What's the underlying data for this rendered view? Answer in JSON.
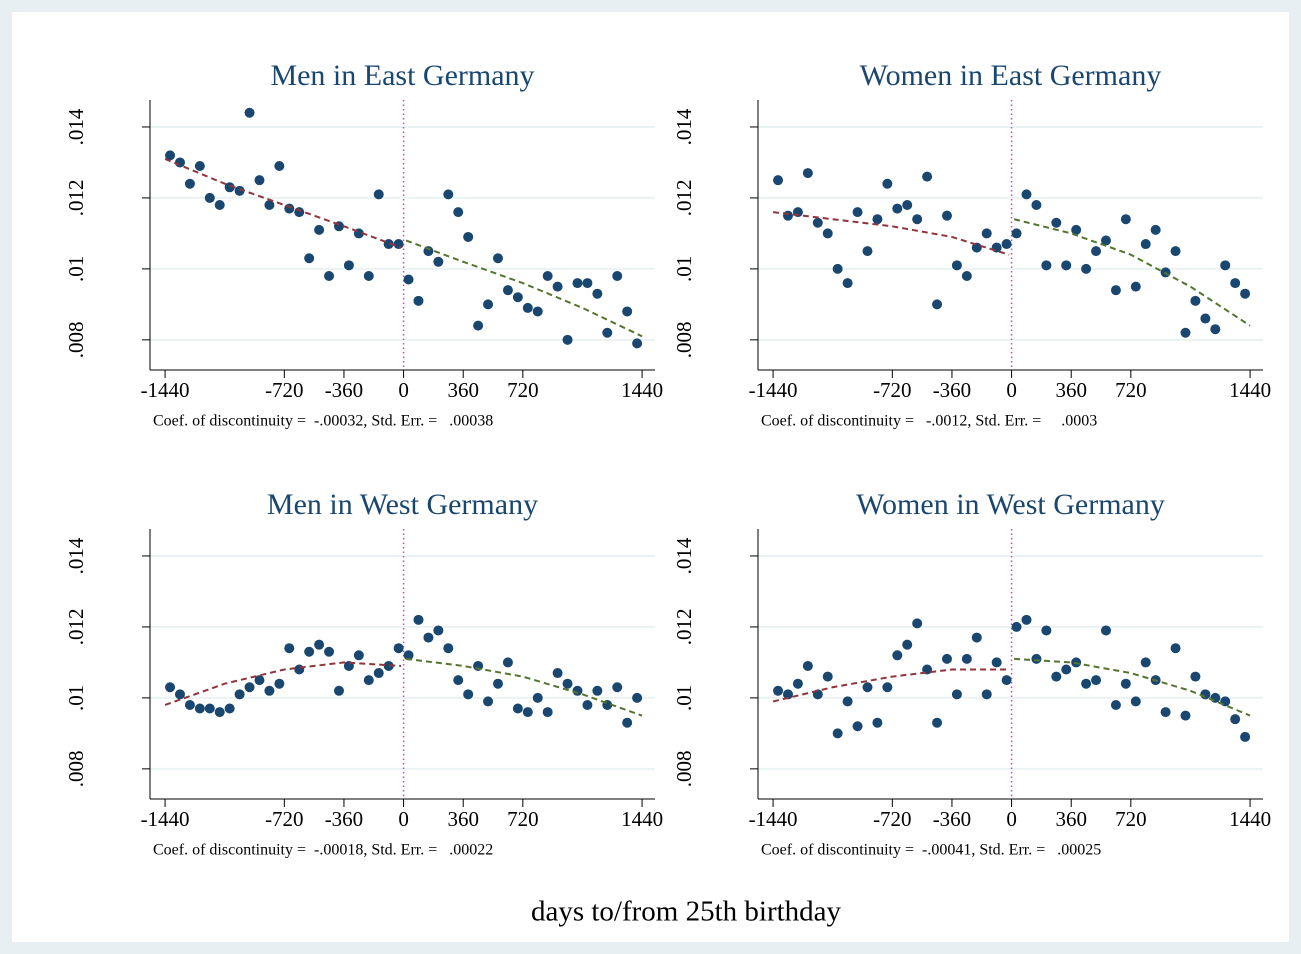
{
  "xlabel": "days to/from 25th birthday",
  "chart_data": [
    {
      "type": "scatter",
      "title": "Men in East Germany",
      "note": "Coef. of discontinuity =  -.00032, Std. Err. =   .00038",
      "xlim": [
        -1531,
        1518
      ],
      "xticks": [
        -1440,
        -720,
        -360,
        0,
        360,
        720,
        1440
      ],
      "ylim": [
        0.00715,
        0.01476
      ],
      "yticks": [
        {
          "value": 0.008,
          "label": ".008"
        },
        {
          "value": 0.01,
          "label": ".01"
        },
        {
          "value": 0.012,
          "label": ".012"
        },
        {
          "value": 0.014,
          "label": ".014"
        }
      ],
      "grid": true,
      "cutoff": 0,
      "cutoff_color": "#cc44cc",
      "series": [
        {
          "type": "scatter",
          "color": "#1a476f",
          "x": [
            -1410,
            -1350,
            -1290,
            -1230,
            -1170,
            -1110,
            -1050,
            -990,
            -930,
            -870,
            -810,
            -750,
            -690,
            -630,
            -570,
            -510,
            -450,
            -390,
            -330,
            -270,
            -210,
            -150,
            -90,
            -30,
            30,
            90,
            150,
            210,
            270,
            330,
            390,
            450,
            510,
            570,
            630,
            690,
            750,
            810,
            870,
            930,
            990,
            1050,
            1110,
            1170,
            1230,
            1290,
            1350,
            1410
          ],
          "values": [
            0.0132,
            0.013,
            0.0124,
            0.0129,
            0.012,
            0.0118,
            0.0123,
            0.0122,
            0.0144,
            0.0125,
            0.0118,
            0.0129,
            0.0117,
            0.0116,
            0.0103,
            0.0111,
            0.0098,
            0.0112,
            0.0101,
            0.011,
            0.0098,
            0.0121,
            0.0107,
            0.0107,
            0.0097,
            0.0091,
            0.0105,
            0.0102,
            0.0121,
            0.0116,
            0.0109,
            0.0084,
            0.009,
            0.0103,
            0.0094,
            0.0092,
            0.0089,
            0.0088,
            0.0098,
            0.0095,
            0.008,
            0.0096,
            0.0096,
            0.0093,
            0.0082,
            0.0098,
            0.0088,
            0.0079
          ]
        },
        {
          "type": "line",
          "color": "#90353b",
          "dash": true,
          "x": [
            -1440,
            -1080,
            -720,
            -360,
            -15
          ],
          "values": [
            0.0131,
            0.0124,
            0.0118,
            0.0112,
            0.0106
          ]
        },
        {
          "type": "line",
          "color": "#55752f",
          "dash": true,
          "x": [
            15,
            360,
            720,
            1080,
            1440
          ],
          "values": [
            0.0108,
            0.0102,
            0.0096,
            0.0089,
            0.0081
          ]
        }
      ]
    },
    {
      "type": "scatter",
      "title": "Women in East Germany",
      "note": "Coef. of discontinuity =   -.0012, Std. Err. =     .0003",
      "xlim": [
        -1531,
        1518
      ],
      "xticks": [
        -1440,
        -720,
        -360,
        0,
        360,
        720,
        1440
      ],
      "ylim": [
        0.00715,
        0.01476
      ],
      "yticks": [
        {
          "value": 0.008,
          "label": ".008"
        },
        {
          "value": 0.01,
          "label": ".01"
        },
        {
          "value": 0.012,
          "label": ".012"
        },
        {
          "value": 0.014,
          "label": ".014"
        }
      ],
      "grid": true,
      "cutoff": 0,
      "cutoff_color": "#cc44cc",
      "series": [
        {
          "type": "scatter",
          "color": "#1a476f",
          "x": [
            -1410,
            -1350,
            -1290,
            -1230,
            -1170,
            -1110,
            -1050,
            -990,
            -930,
            -870,
            -810,
            -750,
            -690,
            -630,
            -570,
            -510,
            -450,
            -390,
            -330,
            -270,
            -210,
            -150,
            -90,
            -30,
            30,
            90,
            150,
            210,
            270,
            330,
            390,
            450,
            510,
            570,
            630,
            690,
            750,
            810,
            870,
            930,
            990,
            1050,
            1110,
            1170,
            1230,
            1290,
            1350,
            1410
          ],
          "values": [
            0.0125,
            0.0115,
            0.0116,
            0.0127,
            0.0113,
            0.011,
            0.01,
            0.0096,
            0.0116,
            0.0105,
            0.0114,
            0.0124,
            0.0117,
            0.0118,
            0.0114,
            0.0126,
            0.009,
            0.0115,
            0.0101,
            0.0098,
            0.0106,
            0.011,
            0.0106,
            0.0107,
            0.011,
            0.0121,
            0.0118,
            0.0101,
            0.0113,
            0.0101,
            0.0111,
            0.01,
            0.0105,
            0.0108,
            0.0094,
            0.0114,
            0.0095,
            0.0107,
            0.0111,
            0.0099,
            0.0105,
            0.0082,
            0.0091,
            0.0086,
            0.0083,
            0.0101,
            0.0096,
            0.0093
          ]
        },
        {
          "type": "line",
          "color": "#90353b",
          "dash": true,
          "x": [
            -1440,
            -1080,
            -720,
            -360,
            -15
          ],
          "values": [
            0.0116,
            0.0114,
            0.0112,
            0.0109,
            0.0104
          ]
        },
        {
          "type": "line",
          "color": "#55752f",
          "dash": true,
          "x": [
            15,
            360,
            720,
            1080,
            1440
          ],
          "values": [
            0.0114,
            0.011,
            0.0104,
            0.0095,
            0.0084
          ]
        }
      ]
    },
    {
      "type": "scatter",
      "title": "Men in West Germany",
      "note": "Coef. of discontinuity =  -.00018, Std. Err. =   .00022",
      "xlim": [
        -1531,
        1518
      ],
      "xticks": [
        -1440,
        -720,
        -360,
        0,
        360,
        720,
        1440
      ],
      "ylim": [
        0.00715,
        0.01476
      ],
      "yticks": [
        {
          "value": 0.008,
          "label": ".008"
        },
        {
          "value": 0.01,
          "label": ".01"
        },
        {
          "value": 0.012,
          "label": ".012"
        },
        {
          "value": 0.014,
          "label": ".014"
        }
      ],
      "grid": true,
      "cutoff": 0,
      "cutoff_color": "#cc44cc",
      "series": [
        {
          "type": "scatter",
          "color": "#1a476f",
          "x": [
            -1410,
            -1350,
            -1290,
            -1230,
            -1170,
            -1110,
            -1050,
            -990,
            -930,
            -870,
            -810,
            -750,
            -690,
            -630,
            -570,
            -510,
            -450,
            -390,
            -330,
            -270,
            -210,
            -150,
            -90,
            -30,
            30,
            90,
            150,
            210,
            270,
            330,
            390,
            450,
            510,
            570,
            630,
            690,
            750,
            810,
            870,
            930,
            990,
            1050,
            1110,
            1170,
            1230,
            1290,
            1350,
            1410
          ],
          "values": [
            0.0103,
            0.0101,
            0.0098,
            0.0097,
            0.0097,
            0.0096,
            0.0097,
            0.0101,
            0.0103,
            0.0105,
            0.0102,
            0.0104,
            0.0114,
            0.0108,
            0.0113,
            0.0115,
            0.0113,
            0.0102,
            0.0109,
            0.0112,
            0.0105,
            0.0107,
            0.0109,
            0.0114,
            0.0112,
            0.0122,
            0.0117,
            0.0119,
            0.0114,
            0.0105,
            0.0101,
            0.0109,
            0.0099,
            0.0104,
            0.011,
            0.0097,
            0.0096,
            0.01,
            0.0096,
            0.0107,
            0.0104,
            0.0102,
            0.0098,
            0.0102,
            0.0098,
            0.0103,
            0.0093,
            0.01
          ]
        },
        {
          "type": "line",
          "color": "#90353b",
          "dash": true,
          "x": [
            -1440,
            -1080,
            -720,
            -360,
            -15
          ],
          "values": [
            0.0098,
            0.0104,
            0.0108,
            0.011,
            0.0109
          ]
        },
        {
          "type": "line",
          "color": "#55752f",
          "dash": true,
          "x": [
            15,
            360,
            720,
            1080,
            1440
          ],
          "values": [
            0.0111,
            0.0109,
            0.0106,
            0.0101,
            0.0095
          ]
        }
      ]
    },
    {
      "type": "scatter",
      "title": "Women in West Germany",
      "note": "Coef. of discontinuity =  -.00041, Std. Err. =   .00025",
      "xlim": [
        -1531,
        1518
      ],
      "xticks": [
        -1440,
        -720,
        -360,
        0,
        360,
        720,
        1440
      ],
      "ylim": [
        0.00715,
        0.01476
      ],
      "yticks": [
        {
          "value": 0.008,
          "label": ".008"
        },
        {
          "value": 0.01,
          "label": ".01"
        },
        {
          "value": 0.012,
          "label": ".012"
        },
        {
          "value": 0.014,
          "label": ".014"
        }
      ],
      "grid": true,
      "cutoff": 0,
      "cutoff_color": "#cc44cc",
      "series": [
        {
          "type": "scatter",
          "color": "#1a476f",
          "x": [
            -1410,
            -1350,
            -1290,
            -1230,
            -1170,
            -1110,
            -1050,
            -990,
            -930,
            -870,
            -810,
            -750,
            -690,
            -630,
            -570,
            -510,
            -450,
            -390,
            -330,
            -270,
            -210,
            -150,
            -90,
            -30,
            30,
            90,
            150,
            210,
            270,
            330,
            390,
            450,
            510,
            570,
            630,
            690,
            750,
            810,
            870,
            930,
            990,
            1050,
            1110,
            1170,
            1230,
            1290,
            1350,
            1410
          ],
          "values": [
            0.0102,
            0.0101,
            0.0104,
            0.0109,
            0.0101,
            0.0106,
            0.009,
            0.0099,
            0.0092,
            0.0103,
            0.0093,
            0.0103,
            0.0112,
            0.0115,
            0.0121,
            0.0108,
            0.0093,
            0.0111,
            0.0101,
            0.0111,
            0.0117,
            0.0101,
            0.011,
            0.0105,
            0.012,
            0.0122,
            0.0111,
            0.0119,
            0.0106,
            0.0108,
            0.011,
            0.0104,
            0.0105,
            0.0119,
            0.0098,
            0.0104,
            0.0099,
            0.011,
            0.0105,
            0.0096,
            0.0114,
            0.0095,
            0.0106,
            0.0101,
            0.01,
            0.0099,
            0.0094,
            0.0089
          ]
        },
        {
          "type": "line",
          "color": "#90353b",
          "dash": true,
          "x": [
            -1440,
            -1080,
            -720,
            -360,
            -15
          ],
          "values": [
            0.0099,
            0.0103,
            0.0106,
            0.0108,
            0.0108
          ]
        },
        {
          "type": "line",
          "color": "#55752f",
          "dash": true,
          "x": [
            15,
            360,
            720,
            1080,
            1440
          ],
          "values": [
            0.0111,
            0.011,
            0.0107,
            0.0102,
            0.0095
          ]
        }
      ]
    }
  ]
}
